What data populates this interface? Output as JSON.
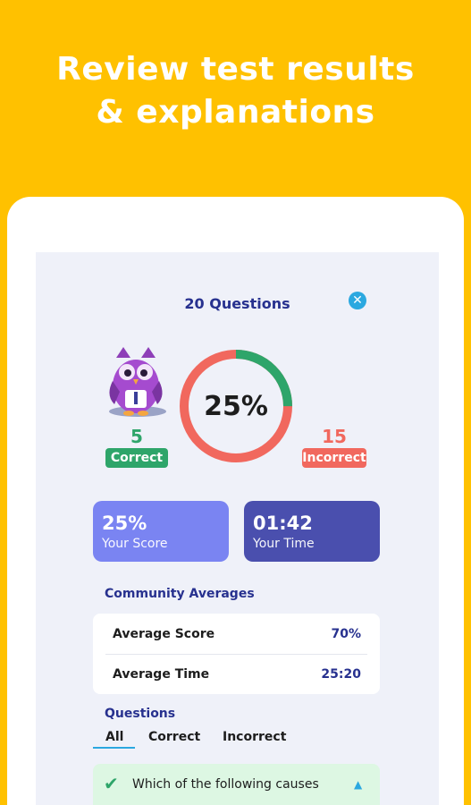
{
  "headline": {
    "line1": "Review test results",
    "line2": "& explanations"
  },
  "results": {
    "title": "20 Questions",
    "close_icon": "close-icon",
    "percent_label": "25%",
    "score_fraction": 0.25,
    "correct_count": "5",
    "correct_label": "Correct",
    "incorrect_count": "15",
    "incorrect_label": "Incorrect",
    "colors": {
      "correct": "#2EA56A",
      "incorrect": "#F1685E",
      "score_card": "#7A84F2",
      "time_card": "#4A4FAE",
      "accent": "#2BA8E0",
      "title": "#27318F"
    }
  },
  "stats": {
    "score_value": "25%",
    "score_label": "Your Score",
    "time_value": "01:42",
    "time_label": "Your Time"
  },
  "community": {
    "title": "Community Averages",
    "rows": [
      {
        "label": "Average Score",
        "value": "70%"
      },
      {
        "label": "Average Time",
        "value": "25:20"
      }
    ]
  },
  "questions": {
    "title": "Questions",
    "tabs": [
      {
        "label": "All",
        "active": true
      },
      {
        "label": "Correct",
        "active": false
      },
      {
        "label": "Incorrect",
        "active": false
      }
    ],
    "items": [
      {
        "text": "Which of the following causes",
        "status": "correct",
        "icon": "check-icon"
      }
    ]
  }
}
